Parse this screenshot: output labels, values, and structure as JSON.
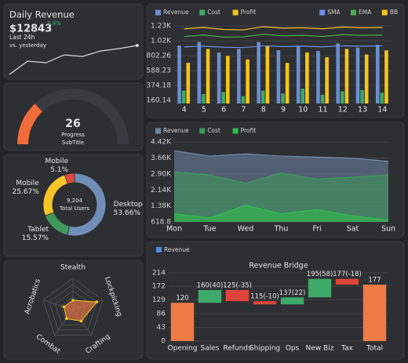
{
  "chart_data": [
    {
      "type": "sparkline",
      "title": "Daily Revenue",
      "value_text": "$12843",
      "change": "3.8%",
      "period": "Last 24h",
      "comparison": "vs. yesterday",
      "values": [
        5,
        22,
        20,
        30,
        28,
        35,
        38,
        42
      ],
      "color": "#d9d9d9",
      "change_color": "#3cb371"
    },
    {
      "type": "gauge",
      "value": 26,
      "range": [
        0,
        100
      ],
      "label": "Progress",
      "subtitle": "SubTitle",
      "color": "#f26b3a",
      "track_color": "#3a3b40"
    },
    {
      "type": "donut",
      "categories": [
        "Desktop",
        "Tablet",
        "Mobile",
        "Mobile"
      ],
      "values": [
        53.66,
        15.57,
        25.67,
        5.1
      ],
      "value_labels": [
        "53.66%",
        "15.57%",
        "25.67%",
        "5.1%"
      ],
      "colors": [
        "#6f8fb8",
        "#3d9a5a",
        "#f5c52a",
        "#e04a3a"
      ],
      "center_value": "9,204",
      "center_label": "Total Users"
    },
    {
      "type": "radar",
      "categories": [
        "Stealth",
        "Lockpicking",
        "Crafting",
        "Combat",
        "Acrobatics"
      ],
      "values": [
        30,
        80,
        45,
        35,
        30
      ],
      "rlim": [
        0,
        100
      ],
      "color": "#f07a45",
      "point_color": "#f5c518"
    },
    {
      "type": "bar",
      "categories": [
        "4",
        "5",
        "6",
        "7",
        "8",
        "9",
        "10",
        "11",
        "12",
        "13",
        "14"
      ],
      "series": [
        {
          "name": "Revenue",
          "type": "bar",
          "color": "#6a8fd0",
          "values": [
            950,
            1000,
            850,
            900,
            1000,
            880,
            950,
            870,
            980,
            920,
            960
          ]
        },
        {
          "name": "Cost",
          "type": "bar",
          "color": "#3ea86a",
          "values": [
            300,
            250,
            280,
            220,
            300,
            260,
            330,
            240,
            290,
            310,
            270
          ]
        },
        {
          "name": "Profit",
          "type": "bar",
          "color": "#f5c518",
          "values": [
            700,
            900,
            800,
            750,
            950,
            700,
            850,
            780,
            900,
            820,
            880
          ]
        },
        {
          "name": "SMA",
          "type": "line",
          "color": "#6b8fe8",
          "values": [
            930,
            940,
            925,
            920,
            945,
            935,
            940,
            930,
            945,
            940,
            945
          ]
        },
        {
          "name": "EMA",
          "type": "line",
          "color": "#4caf50",
          "values": [
            1080,
            1100,
            1070,
            1075,
            1110,
            1090,
            1095,
            1080,
            1105,
            1095,
            1100
          ]
        },
        {
          "name": "BB",
          "type": "line",
          "color": "#f5c518",
          "values": [
            1190,
            1210,
            1180,
            1175,
            1220,
            1200,
            1205,
            1190,
            1215,
            1205,
            1210
          ]
        }
      ],
      "ylim": [
        115,
        1300
      ],
      "yticks": [
        160.14,
        374.18,
        588.23,
        802.26,
        {
          "value": 1016.3,
          "label": "1.02K"
        },
        {
          "value": 1230.35,
          "label": "1.23K"
        }
      ],
      "grid": true
    },
    {
      "type": "area",
      "categories": [
        "Mon",
        "Tue",
        "Wed",
        "Thu",
        "Fri",
        "Sat",
        "Sun"
      ],
      "series": [
        {
          "name": "Revenue",
          "color": "#6f87a8",
          "values": [
            4000,
            3750,
            3850,
            3750,
            3700,
            3650,
            3500
          ]
        },
        {
          "name": "Cost",
          "color": "#3d9a5a",
          "values": [
            3000,
            2850,
            2450,
            2950,
            2650,
            2750,
            2850
          ]
        },
        {
          "name": "Profit",
          "color": "#2fbf4a",
          "values": [
            1000,
            800,
            1400,
            1000,
            1200,
            900,
            700
          ]
        }
      ],
      "ylim": [
        618.8,
        4650
      ],
      "yticks": [
        618.8,
        {
          "value": 1378.84,
          "label": "1.38K"
        },
        {
          "value": 2138.88,
          "label": "2.14K"
        },
        {
          "value": 2898.92,
          "label": "2.90K"
        },
        {
          "value": 3658.96,
          "label": "3.66K"
        },
        {
          "value": 4419,
          "label": "4.42K"
        }
      ],
      "grid": true
    },
    {
      "type": "waterfall",
      "title": "Revenue Bridge",
      "series_name": "Revenue",
      "legend_color": "#4a90e2",
      "categories": [
        "Opening",
        "Sales",
        "Refunds",
        "Shipping",
        "Ops",
        "New Biz",
        "Tax",
        "Total"
      ],
      "values": [
        120,
        40,
        -35,
        -10,
        22,
        58,
        -18,
        177
      ],
      "measure": [
        "absolute",
        "relative",
        "relative",
        "relative",
        "relative",
        "relative",
        "relative",
        "total"
      ],
      "value_labels": [
        "120",
        "160(40)",
        "125(-35)",
        "115(-10)",
        "137(22)",
        "195(58)",
        "177(-18)",
        "177"
      ],
      "colors": {
        "increase": "#3daa6a",
        "decrease": "#e0453a",
        "total": "#f07a45"
      },
      "ylim": [
        0,
        214
      ],
      "yticks": [
        0,
        43,
        86,
        129,
        172,
        214
      ],
      "grid": true
    }
  ]
}
